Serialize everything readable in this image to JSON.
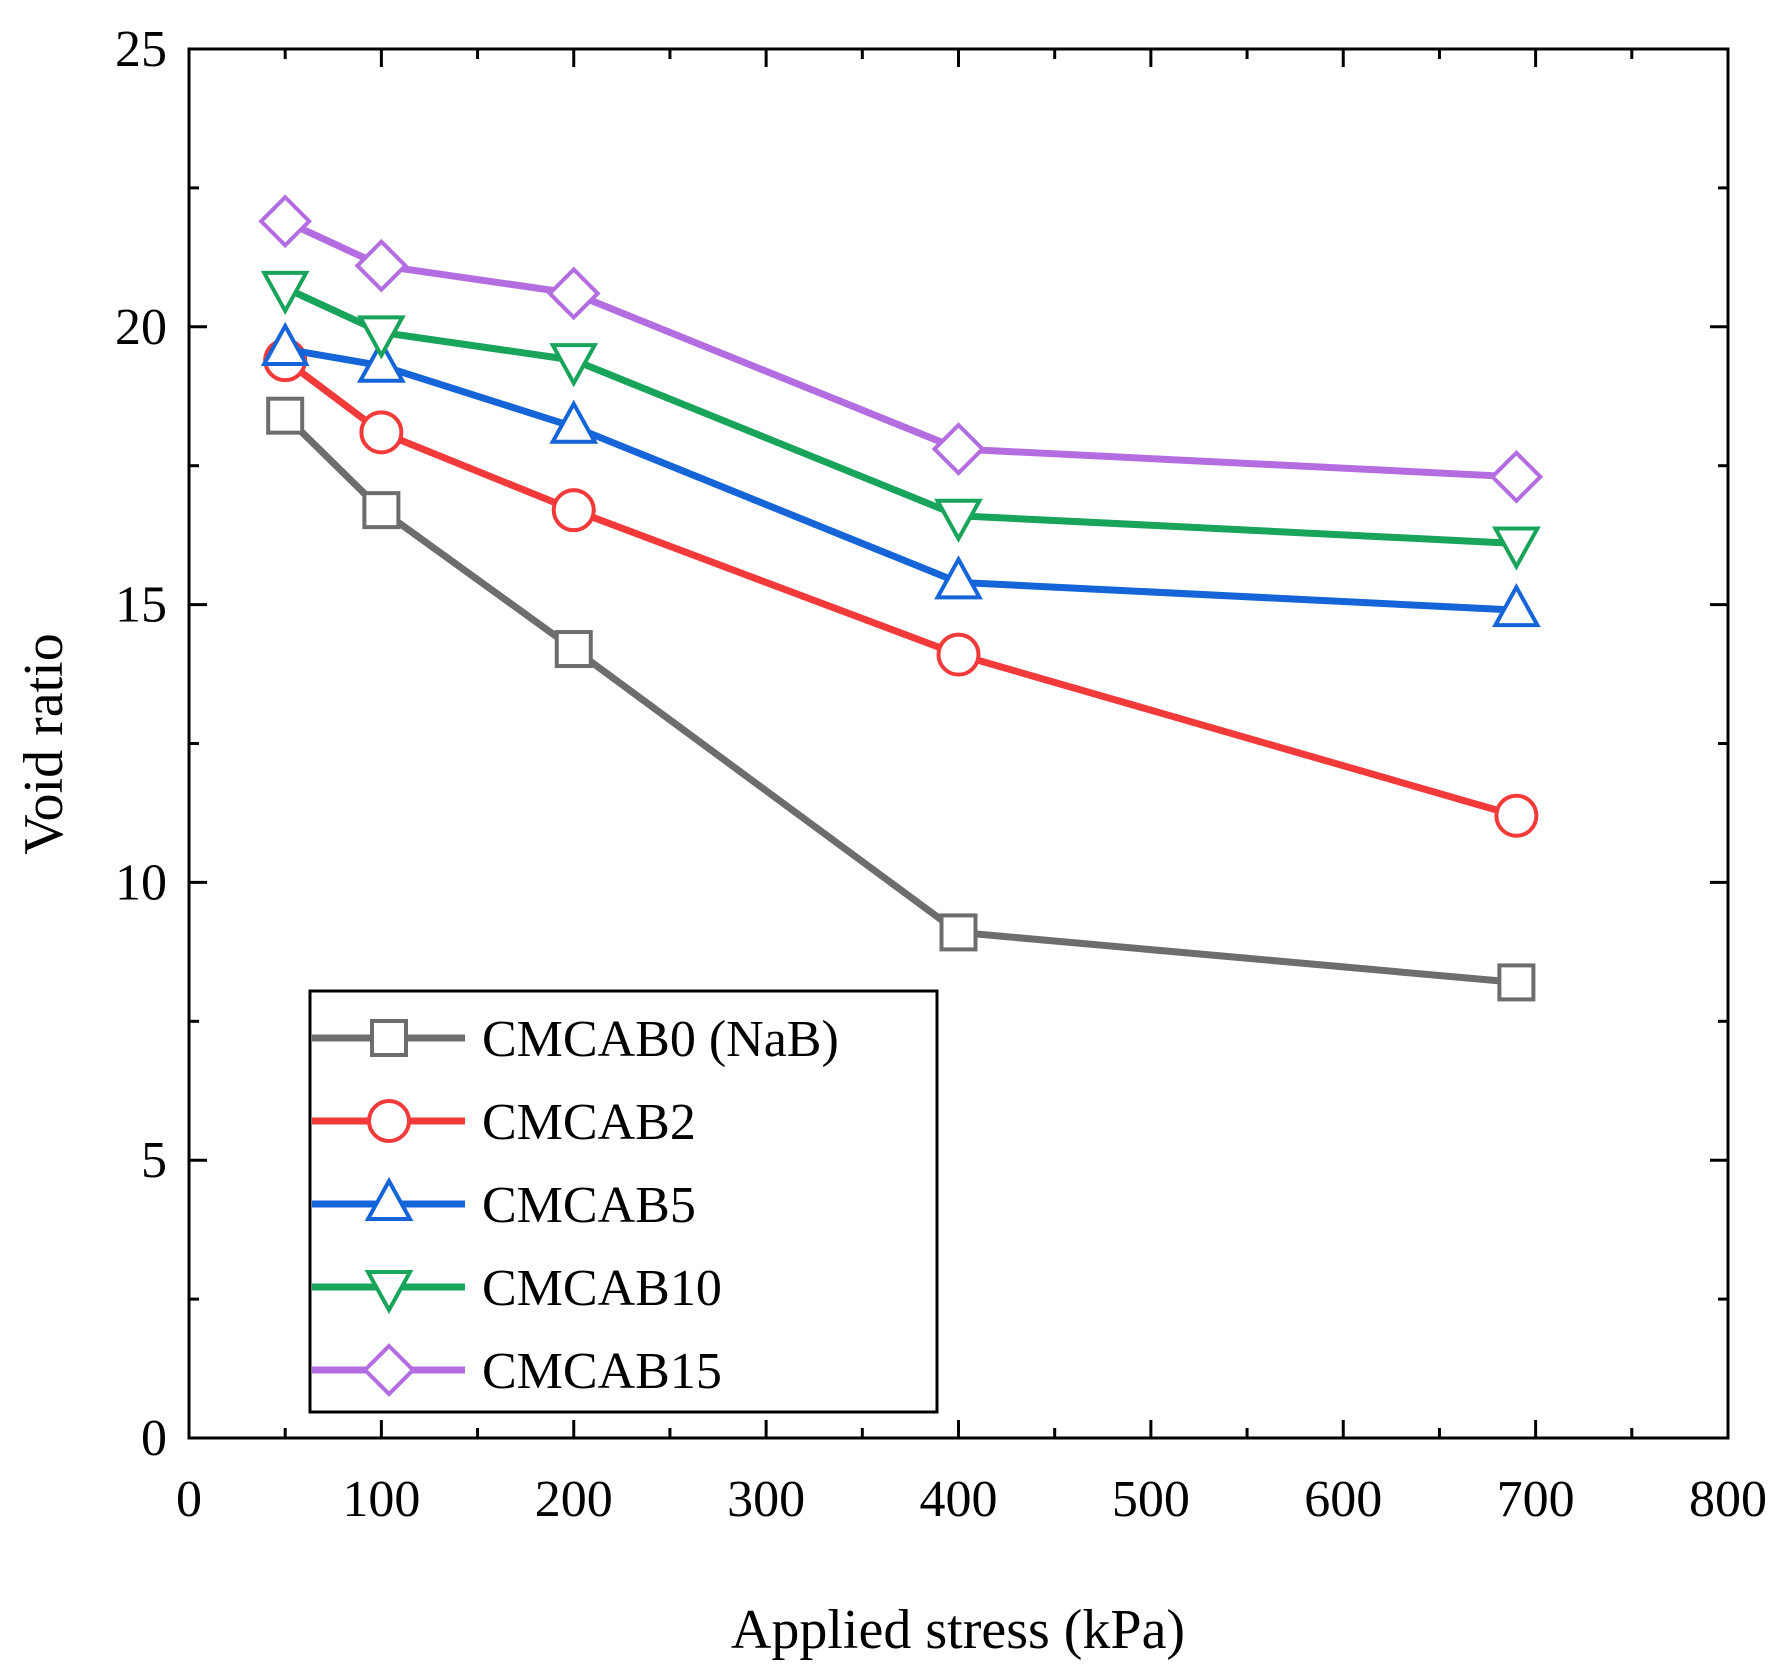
{
  "chart_data": {
    "type": "line",
    "xlabel": "Applied stress (kPa)",
    "ylabel": "Void ratio",
    "xlim": [
      0,
      800
    ],
    "ylim": [
      0,
      25
    ],
    "xticks": [
      0,
      100,
      200,
      300,
      400,
      500,
      600,
      700,
      800
    ],
    "yticks": [
      0,
      5,
      10,
      15,
      20,
      25
    ],
    "x": [
      50,
      100,
      200,
      400,
      690
    ],
    "grid": false,
    "legend_position": "bottom-left",
    "series": [
      {
        "name": "CMCAB0 (NaB)",
        "color": "#6d6d6d",
        "marker": "square",
        "values": [
          18.4,
          16.7,
          14.2,
          9.1,
          8.2
        ]
      },
      {
        "name": "CMCAB2",
        "color": "#f23a3a",
        "marker": "circle",
        "values": [
          19.4,
          18.1,
          16.7,
          14.1,
          11.2
        ]
      },
      {
        "name": "CMCAB5",
        "color": "#1565d8",
        "marker": "triangle-up",
        "values": [
          19.6,
          19.3,
          18.2,
          15.4,
          14.9
        ]
      },
      {
        "name": "CMCAB10",
        "color": "#18a45a",
        "marker": "triangle-down",
        "values": [
          20.7,
          19.9,
          19.4,
          16.6,
          16.1
        ]
      },
      {
        "name": "CMCAB15",
        "color": "#b36de0",
        "marker": "diamond",
        "values": [
          21.9,
          21.1,
          20.6,
          17.8,
          17.3
        ]
      }
    ]
  }
}
